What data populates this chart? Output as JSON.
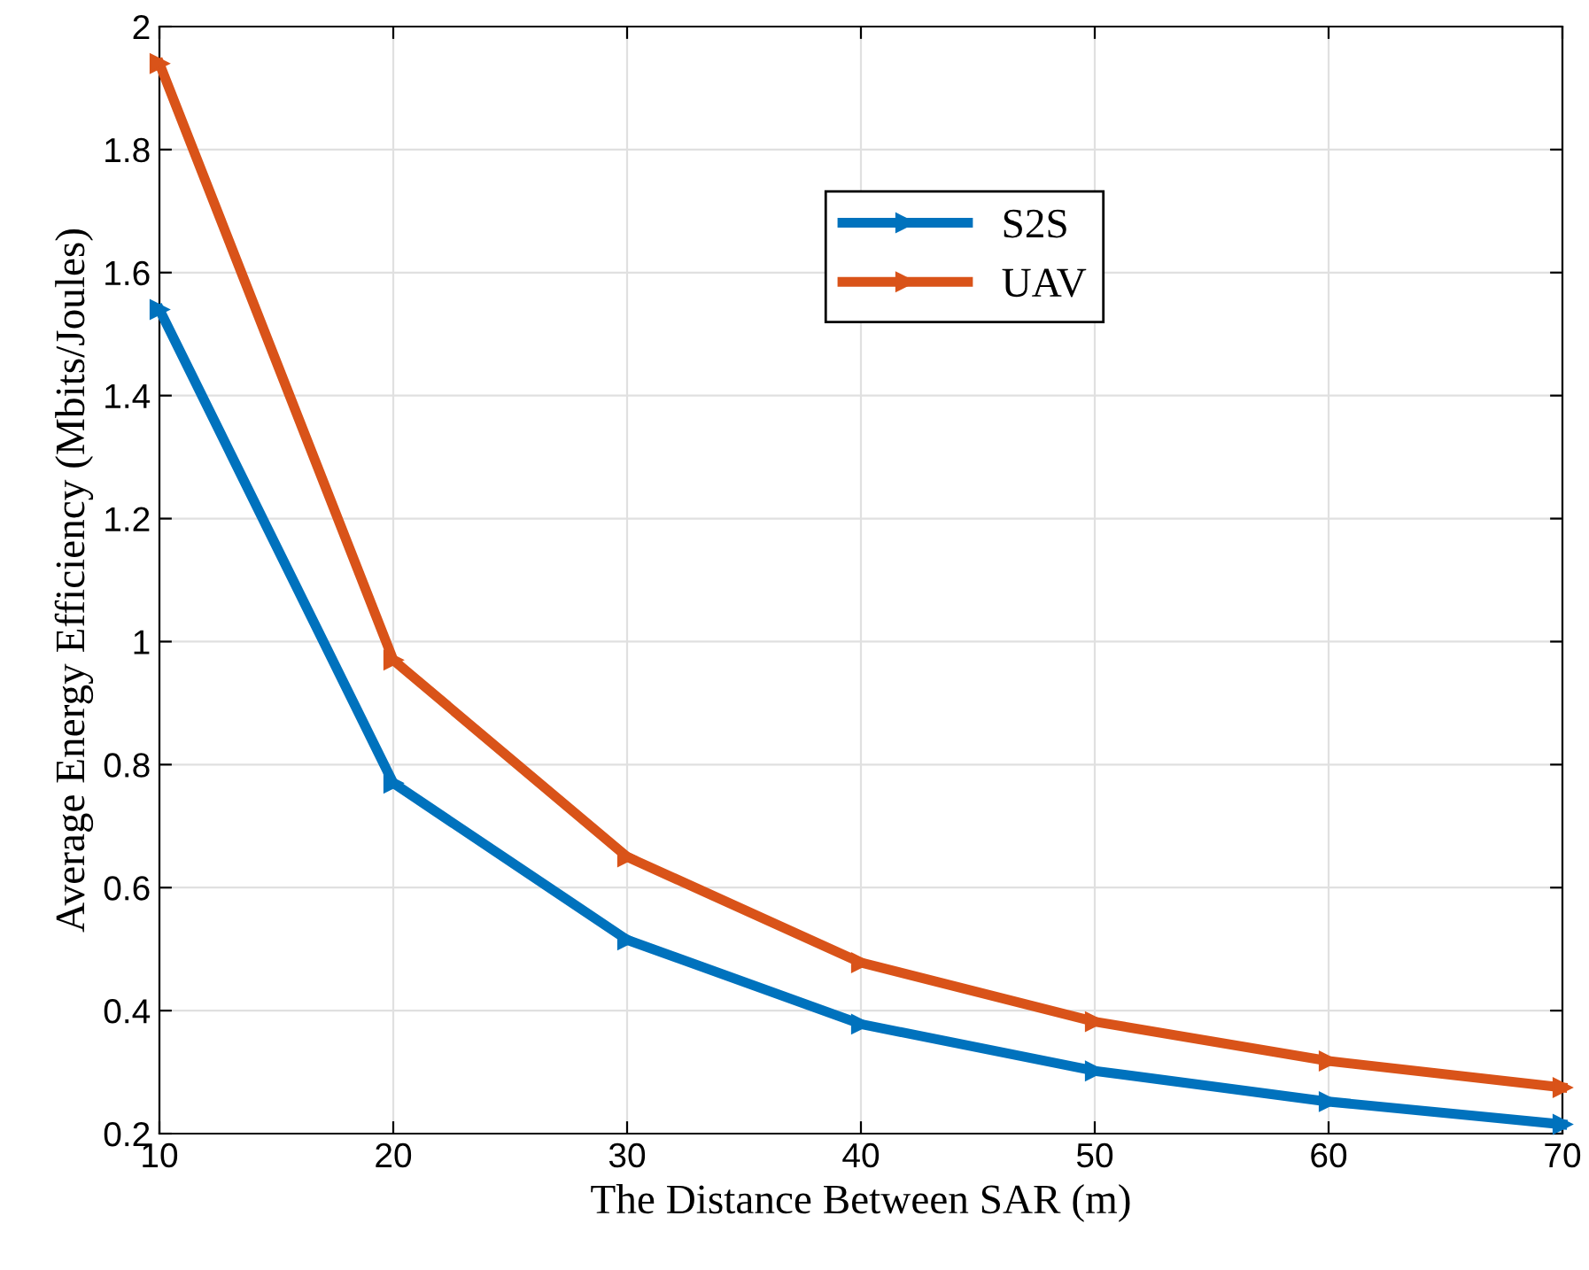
{
  "chart_data": {
    "type": "line",
    "xlabel": "The Distance Between SAR (m)",
    "ylabel": "Average Energy Efficiency (Mbits/Joules)",
    "x": [
      10,
      20,
      30,
      40,
      50,
      60,
      70
    ],
    "series": [
      {
        "name": "S2S",
        "color": "#0072bd",
        "values": [
          1.54,
          0.77,
          0.515,
          0.378,
          0.302,
          0.252,
          0.215
        ]
      },
      {
        "name": "UAV",
        "color": "#d95319",
        "values": [
          1.94,
          0.97,
          0.65,
          0.478,
          0.382,
          0.318,
          0.275
        ]
      }
    ],
    "xlim": [
      10,
      70
    ],
    "xticks": [
      10,
      20,
      30,
      40,
      50,
      60,
      70
    ],
    "ylim": [
      0.2,
      2
    ],
    "yticks": [
      0.2,
      0.4,
      0.6,
      0.8,
      1,
      1.2,
      1.4,
      1.6,
      1.8,
      2
    ],
    "grid": true,
    "legend": "top center",
    "marker": "triangle",
    "line_style": "solid"
  }
}
